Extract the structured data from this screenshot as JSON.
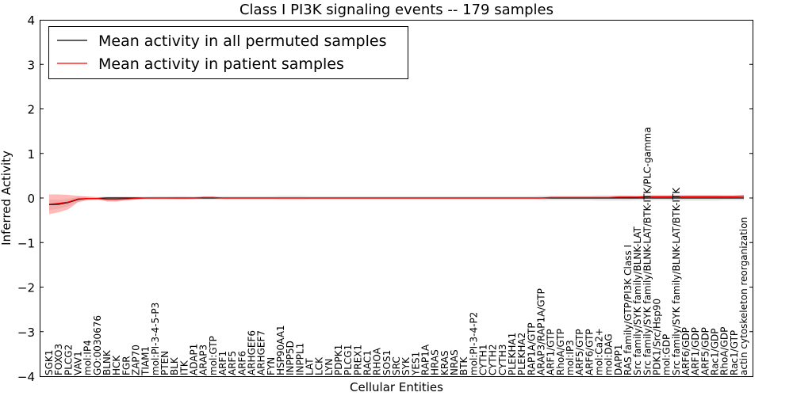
{
  "chart_data": {
    "type": "line",
    "title": "Class I PI3K signaling events -- 179 samples",
    "xlabel": "Cellular Entities",
    "ylabel": "Inferred Activity",
    "ylim": [
      -4,
      4
    ],
    "yticks": [
      "4",
      "3",
      "2",
      "1",
      "0",
      "−1",
      "−2",
      "−3",
      "−4"
    ],
    "grid": false,
    "legend_position": "top-left",
    "categories": [
      "SGK1",
      "FOXO3",
      "PLCG2",
      "VAV1",
      "mol:IP4",
      "GO:0030676",
      "BLNK",
      "HCK",
      "FGR",
      "ZAP70",
      "TIAM1",
      "mol:PI-3-4-5-P3",
      "PTEN",
      "BLK",
      "ITK",
      "ADAP1",
      "ARAP3",
      "mol:GTP",
      "ARF1",
      "ARF5",
      "ARF6",
      "ARHGEF6",
      "ARHGEF7",
      "FYN",
      "HSP90AA1",
      "INPP5D",
      "INPPL1",
      "LAT",
      "LCK",
      "LYN",
      "PDPK1",
      "PLCG1",
      "PREX1",
      "RAC1",
      "RHOA",
      "SOS1",
      "SRC",
      "SYK",
      "YES1",
      "RAP1A",
      "HRAS",
      "KRAS",
      "NRAS",
      "BTK",
      "mol:PI-3-4-P2",
      "CYTH1",
      "CYTH2",
      "CYTH3",
      "PLEKHA1",
      "PLEKHA2",
      "RAP1A/GTP",
      "ARAP3/RAP1A/GTP",
      "ARF1/GTP",
      "RhoA/GTP",
      "mol:IP3",
      "ARF5/GTP",
      "ARF6/GTP",
      "mol:Ca2+",
      "mol:DAG",
      "DAPP1",
      "RAS family/GTP/PI3K Class I",
      "Src family/SYK family/BLNK-LAT",
      "Src family/SYK family/BLNK-LAT/BTK-ITK/PLC-gamma",
      "PDK1/Src/Hsp90",
      "mol:GDP",
      "Src family/SYK family/BLNK-LAT/BTK-ITK",
      "ARF6/GDP",
      "ARF1/GDP",
      "ARF5/GDP",
      "Rac1/GDP",
      "RhoA/GDP",
      "Rac1/GTP",
      "actin cytoskeleton reorganization"
    ],
    "series": [
      {
        "name": "Mean activity in all permuted samples",
        "color": "#000000",
        "values": [
          -0.15,
          -0.14,
          -0.1,
          -0.03,
          -0.01,
          -0.01,
          0,
          0,
          0,
          0,
          0,
          0,
          0,
          0,
          0,
          0,
          0,
          0,
          0,
          0,
          0,
          0,
          0,
          0,
          0,
          0,
          0,
          0,
          0,
          0,
          0,
          0,
          0,
          0,
          0,
          0,
          0,
          0,
          0,
          0,
          0,
          0,
          0,
          0,
          0,
          0,
          0,
          0,
          0,
          0,
          0,
          0,
          0,
          0,
          0,
          0,
          0,
          0,
          0,
          0,
          0,
          0,
          0,
          0,
          0,
          0,
          0,
          0,
          0,
          0,
          0,
          0,
          0
        ],
        "band": [
          0.12,
          0.1,
          0.08,
          0.06,
          0.04,
          0.03,
          0.03,
          0.03,
          0.03,
          0.03,
          0.03,
          0.04,
          0.04,
          0.04,
          0.04,
          0.03,
          0.04,
          0.04,
          0.04,
          0.04,
          0.04,
          0.04,
          0.04,
          0.04,
          0.05,
          0.05,
          0.05,
          0.04,
          0.04,
          0.04,
          0.04,
          0.04,
          0.04,
          0.04,
          0.04,
          0.04,
          0.04,
          0.04,
          0.04,
          0.04,
          0.04,
          0.04,
          0.04,
          0.04,
          0.04,
          0.04,
          0.04,
          0.04,
          0.04,
          0.04,
          0.04,
          0.05,
          0.05,
          0.05,
          0.05,
          0.05,
          0.05,
          0.06,
          0.06,
          0.06,
          0.06,
          0.05,
          0.05,
          0.05,
          0.05,
          0.06,
          0.06,
          0.06,
          0.06,
          0.06,
          0.05,
          0.05,
          0.05
        ]
      },
      {
        "name": "Mean activity in patient samples",
        "color": "#ff0000",
        "fill": "#ff8080",
        "values": [
          -0.14,
          -0.12,
          -0.09,
          -0.02,
          -0.01,
          -0.01,
          -0.03,
          -0.03,
          -0.02,
          -0.01,
          0,
          0,
          0,
          0,
          0,
          0,
          0.01,
          0.01,
          0,
          0,
          0,
          0,
          0,
          0,
          0,
          0,
          0,
          0,
          0,
          0,
          0,
          0,
          0,
          0,
          0,
          0,
          0,
          0,
          0,
          0,
          0,
          0,
          0,
          0,
          0,
          0,
          0,
          0,
          0,
          0,
          0,
          0,
          0.01,
          0.01,
          0.01,
          0.01,
          0.01,
          0.01,
          0.01,
          0.02,
          0.02,
          0.02,
          0.03,
          0.03,
          0.03,
          0.03,
          0.03,
          0.03,
          0.03,
          0.03,
          0.03,
          0.03,
          0.04
        ],
        "band": [
          0.22,
          0.2,
          0.16,
          0.07,
          0.04,
          0.03,
          0.05,
          0.05,
          0.04,
          0.02,
          0.01,
          0.01,
          0.01,
          0.02,
          0.02,
          0.02,
          0.02,
          0.02,
          0.01,
          0.01,
          0.01,
          0.01,
          0.01,
          0.01,
          0.01,
          0.01,
          0.01,
          0.01,
          0.01,
          0.01,
          0.01,
          0.01,
          0.01,
          0.01,
          0.01,
          0.01,
          0.01,
          0.01,
          0.01,
          0.01,
          0.01,
          0.01,
          0.01,
          0.01,
          0.01,
          0.01,
          0.01,
          0.01,
          0.01,
          0.01,
          0.01,
          0.01,
          0.02,
          0.02,
          0.02,
          0.02,
          0.02,
          0.02,
          0.02,
          0.03,
          0.03,
          0.03,
          0.03,
          0.03,
          0.03,
          0.03,
          0.03,
          0.03,
          0.03,
          0.03,
          0.03,
          0.03,
          0.03
        ]
      }
    ]
  }
}
